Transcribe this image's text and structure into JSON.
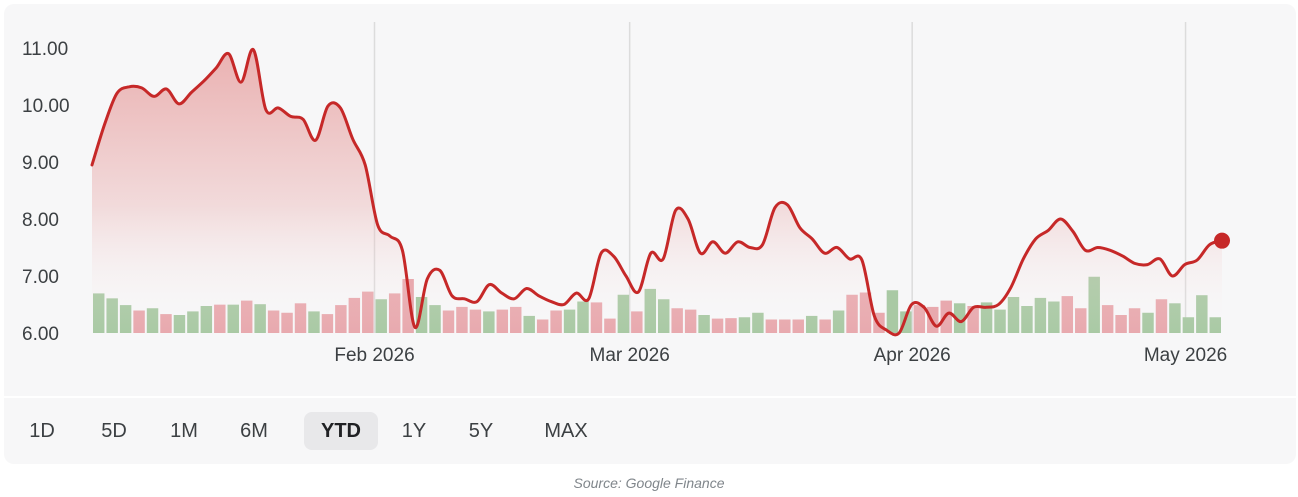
{
  "chart_data": {
    "type": "line",
    "title": "",
    "xlabel": "",
    "ylabel": "",
    "ylim": [
      6.0,
      11.0
    ],
    "yticks": [
      "11.00",
      "10.00",
      "9.00",
      "8.00",
      "7.00",
      "6.00"
    ],
    "ytick_values": [
      11,
      10,
      9,
      8,
      7,
      6
    ],
    "xticks": [
      {
        "label": "Feb 2026",
        "date": "2026-02-01"
      },
      {
        "label": "Mar 2026",
        "date": "2026-03-01"
      },
      {
        "label": "Apr 2026",
        "date": "2026-04-01"
      },
      {
        "label": "May 2026",
        "date": "2026-05-01"
      }
    ],
    "grid": "vertical",
    "colors": {
      "line": "#c62828",
      "area_top": "#e8a5a5",
      "volume_up": "#a9c9a4",
      "volume_down": "#e8a9ae",
      "grid": "#dcdcdc",
      "marker": "#c62828"
    },
    "series": [
      {
        "values": [
          8.95,
          9.65,
          10.2,
          10.32,
          10.3,
          10.15,
          10.28,
          10.02,
          10.22,
          10.42,
          10.65,
          10.9,
          10.4,
          10.97,
          9.92,
          9.95,
          9.8,
          9.75,
          9.38,
          9.98,
          9.95,
          9.4,
          8.95,
          7.9,
          7.7,
          7.45,
          6.1,
          6.95,
          7.1,
          6.65,
          6.6,
          6.55,
          6.85,
          6.7,
          6.6,
          6.78,
          6.65,
          6.55,
          6.5,
          6.7,
          6.6,
          7.4,
          7.35,
          7.0,
          6.72,
          7.4,
          7.3,
          8.15,
          8.0,
          7.4,
          7.6,
          7.4,
          7.6,
          7.5,
          7.55,
          8.2,
          8.25,
          7.85,
          7.65,
          7.4,
          7.5,
          7.3,
          7.28,
          6.3,
          6.05,
          6.0,
          6.5,
          6.45,
          6.12,
          6.35,
          6.2,
          6.45,
          6.45,
          6.5,
          6.8,
          7.3,
          7.65,
          7.8,
          8.0,
          7.78,
          7.45,
          7.5,
          7.45,
          7.35,
          7.22,
          7.2,
          7.3,
          7.0,
          7.2,
          7.28,
          7.55,
          7.62
        ]
      }
    ],
    "volume": [
      {
        "v": 0.88,
        "dir": "up"
      },
      {
        "v": 0.77,
        "dir": "up"
      },
      {
        "v": 0.62,
        "dir": "up"
      },
      {
        "v": 0.5,
        "dir": "down"
      },
      {
        "v": 0.55,
        "dir": "up"
      },
      {
        "v": 0.42,
        "dir": "down"
      },
      {
        "v": 0.4,
        "dir": "up"
      },
      {
        "v": 0.48,
        "dir": "up"
      },
      {
        "v": 0.6,
        "dir": "up"
      },
      {
        "v": 0.63,
        "dir": "down"
      },
      {
        "v": 0.63,
        "dir": "up"
      },
      {
        "v": 0.72,
        "dir": "down"
      },
      {
        "v": 0.64,
        "dir": "up"
      },
      {
        "v": 0.5,
        "dir": "down"
      },
      {
        "v": 0.45,
        "dir": "down"
      },
      {
        "v": 0.66,
        "dir": "down"
      },
      {
        "v": 0.48,
        "dir": "up"
      },
      {
        "v": 0.42,
        "dir": "down"
      },
      {
        "v": 0.62,
        "dir": "down"
      },
      {
        "v": 0.78,
        "dir": "down"
      },
      {
        "v": 0.92,
        "dir": "down"
      },
      {
        "v": 0.75,
        "dir": "up"
      },
      {
        "v": 0.88,
        "dir": "down"
      },
      {
        "v": 1.2,
        "dir": "down"
      },
      {
        "v": 0.8,
        "dir": "up"
      },
      {
        "v": 0.62,
        "dir": "up"
      },
      {
        "v": 0.5,
        "dir": "down"
      },
      {
        "v": 0.58,
        "dir": "down"
      },
      {
        "v": 0.52,
        "dir": "down"
      },
      {
        "v": 0.48,
        "dir": "up"
      },
      {
        "v": 0.52,
        "dir": "down"
      },
      {
        "v": 0.58,
        "dir": "down"
      },
      {
        "v": 0.38,
        "dir": "up"
      },
      {
        "v": 0.3,
        "dir": "down"
      },
      {
        "v": 0.5,
        "dir": "down"
      },
      {
        "v": 0.52,
        "dir": "up"
      },
      {
        "v": 0.7,
        "dir": "up"
      },
      {
        "v": 0.68,
        "dir": "down"
      },
      {
        "v": 0.32,
        "dir": "down"
      },
      {
        "v": 0.85,
        "dir": "up"
      },
      {
        "v": 0.48,
        "dir": "down"
      },
      {
        "v": 0.98,
        "dir": "up"
      },
      {
        "v": 0.75,
        "dir": "up"
      },
      {
        "v": 0.55,
        "dir": "down"
      },
      {
        "v": 0.52,
        "dir": "down"
      },
      {
        "v": 0.4,
        "dir": "up"
      },
      {
        "v": 0.32,
        "dir": "down"
      },
      {
        "v": 0.33,
        "dir": "down"
      },
      {
        "v": 0.35,
        "dir": "up"
      },
      {
        "v": 0.45,
        "dir": "up"
      },
      {
        "v": 0.3,
        "dir": "down"
      },
      {
        "v": 0.3,
        "dir": "down"
      },
      {
        "v": 0.3,
        "dir": "down"
      },
      {
        "v": 0.38,
        "dir": "up"
      },
      {
        "v": 0.3,
        "dir": "down"
      },
      {
        "v": 0.5,
        "dir": "up"
      },
      {
        "v": 0.85,
        "dir": "down"
      },
      {
        "v": 0.9,
        "dir": "down"
      },
      {
        "v": 0.45,
        "dir": "down"
      },
      {
        "v": 0.95,
        "dir": "up"
      },
      {
        "v": 0.48,
        "dir": "up"
      },
      {
        "v": 0.62,
        "dir": "down"
      },
      {
        "v": 0.58,
        "dir": "down"
      },
      {
        "v": 0.72,
        "dir": "down"
      },
      {
        "v": 0.66,
        "dir": "up"
      },
      {
        "v": 0.6,
        "dir": "down"
      },
      {
        "v": 0.68,
        "dir": "up"
      },
      {
        "v": 0.52,
        "dir": "up"
      },
      {
        "v": 0.8,
        "dir": "up"
      },
      {
        "v": 0.6,
        "dir": "up"
      },
      {
        "v": 0.78,
        "dir": "up"
      },
      {
        "v": 0.7,
        "dir": "up"
      },
      {
        "v": 0.82,
        "dir": "down"
      },
      {
        "v": 0.55,
        "dir": "down"
      },
      {
        "v": 1.25,
        "dir": "up"
      },
      {
        "v": 0.62,
        "dir": "down"
      },
      {
        "v": 0.4,
        "dir": "down"
      },
      {
        "v": 0.55,
        "dir": "down"
      },
      {
        "v": 0.45,
        "dir": "up"
      },
      {
        "v": 0.75,
        "dir": "down"
      },
      {
        "v": 0.66,
        "dir": "up"
      },
      {
        "v": 0.35,
        "dir": "up"
      },
      {
        "v": 0.84,
        "dir": "up"
      },
      {
        "v": 0.35,
        "dir": "up"
      }
    ],
    "last_point_marker": true
  },
  "range_selector": {
    "options": [
      "1D",
      "5D",
      "1M",
      "6M",
      "YTD",
      "1Y",
      "5Y",
      "MAX"
    ],
    "selected": "YTD"
  },
  "source": "Source: Google Finance"
}
